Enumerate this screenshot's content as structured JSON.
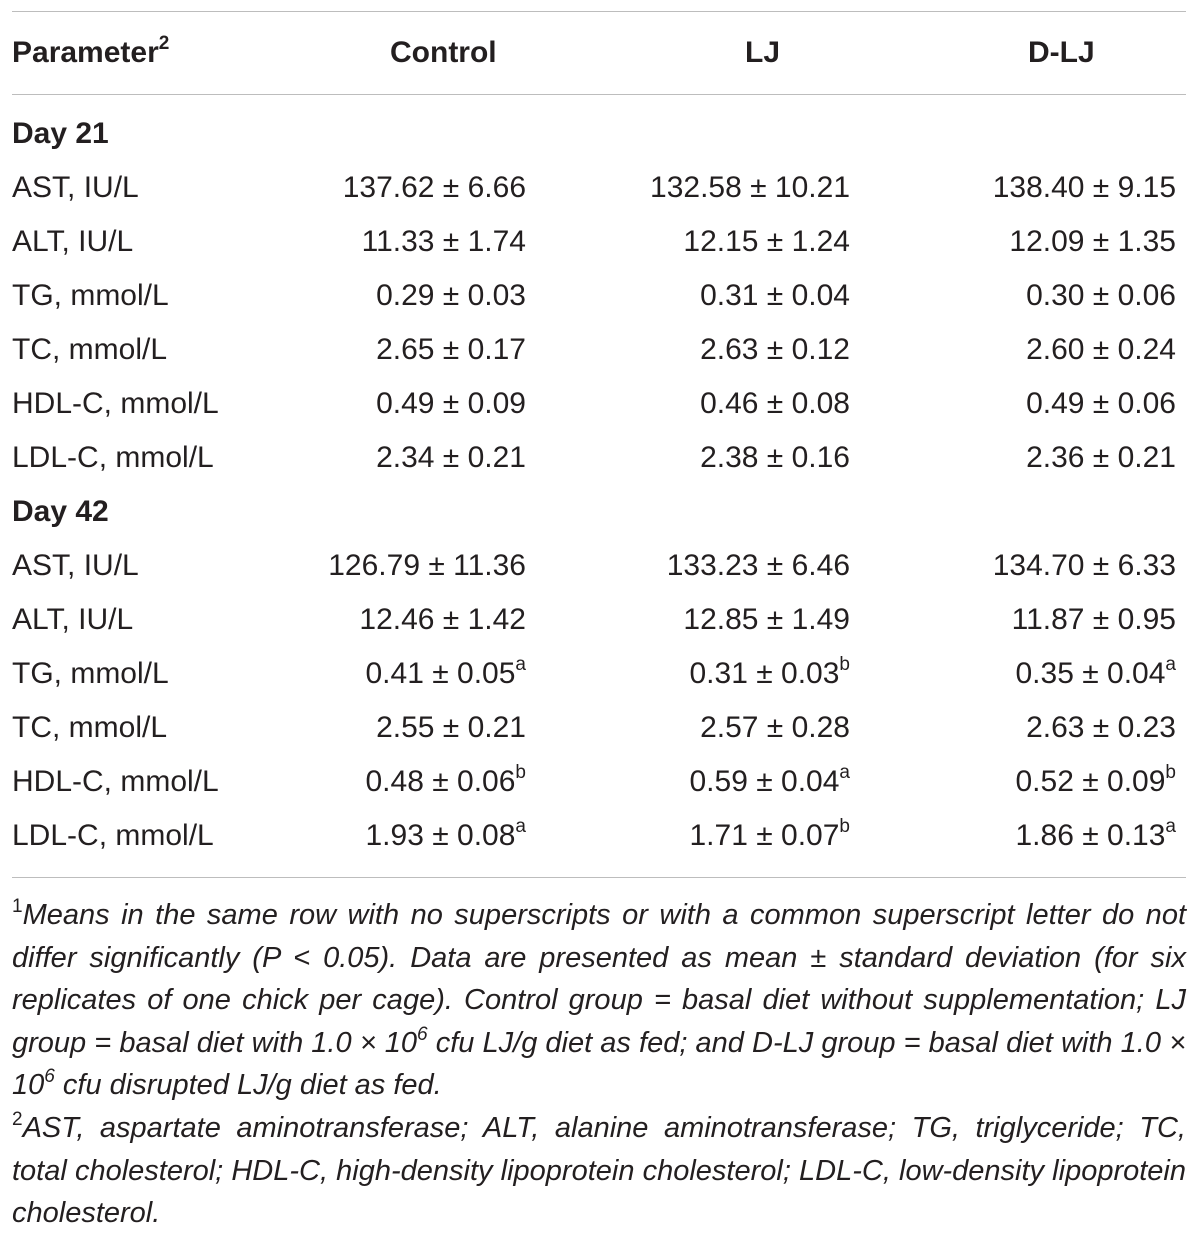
{
  "header": {
    "parameter": "Parameter",
    "parameter_sup": "2",
    "control": "Control",
    "lj": "LJ",
    "dlj": "D-LJ"
  },
  "sections": [
    {
      "title": "Day 21",
      "rows": [
        {
          "param": "AST, IU/L",
          "control": "137.62 ± 6.66",
          "control_sup": "",
          "lj": "132.58 ± 10.21",
          "lj_sup": "",
          "dlj": "138.40 ± 9.15",
          "dlj_sup": ""
        },
        {
          "param": "ALT, IU/L",
          "control": "11.33 ± 1.74",
          "control_sup": "",
          "lj": "12.15 ± 1.24",
          "lj_sup": "",
          "dlj": "12.09 ± 1.35",
          "dlj_sup": ""
        },
        {
          "param": "TG, mmol/L",
          "control": "0.29 ± 0.03",
          "control_sup": "",
          "lj": "0.31 ± 0.04",
          "lj_sup": "",
          "dlj": "0.30 ± 0.06",
          "dlj_sup": ""
        },
        {
          "param": "TC, mmol/L",
          "control": "2.65 ± 0.17",
          "control_sup": "",
          "lj": "2.63 ± 0.12",
          "lj_sup": "",
          "dlj": "2.60 ± 0.24",
          "dlj_sup": ""
        },
        {
          "param": "HDL-C, mmol/L",
          "control": "0.49 ± 0.09",
          "control_sup": "",
          "lj": "0.46 ± 0.08",
          "lj_sup": "",
          "dlj": "0.49 ± 0.06",
          "dlj_sup": ""
        },
        {
          "param": "LDL-C, mmol/L",
          "control": "2.34 ± 0.21",
          "control_sup": "",
          "lj": "2.38 ± 0.16",
          "lj_sup": "",
          "dlj": "2.36 ± 0.21",
          "dlj_sup": ""
        }
      ]
    },
    {
      "title": "Day 42",
      "rows": [
        {
          "param": "AST, IU/L",
          "control": "126.79 ± 11.36",
          "control_sup": "",
          "lj": "133.23 ± 6.46",
          "lj_sup": "",
          "dlj": "134.70 ± 6.33",
          "dlj_sup": ""
        },
        {
          "param": "ALT, IU/L",
          "control": "12.46 ± 1.42",
          "control_sup": "",
          "lj": "12.85 ± 1.49",
          "lj_sup": "",
          "dlj": "11.87 ± 0.95",
          "dlj_sup": ""
        },
        {
          "param": "TG, mmol/L",
          "control": "0.41 ± 0.05",
          "control_sup": "a",
          "lj": "0.31 ± 0.03",
          "lj_sup": "b",
          "dlj": "0.35 ± 0.04",
          "dlj_sup": "a"
        },
        {
          "param": "TC, mmol/L",
          "control": "2.55 ± 0.21",
          "control_sup": "",
          "lj": "2.57 ± 0.28",
          "lj_sup": "",
          "dlj": "2.63 ± 0.23",
          "dlj_sup": ""
        },
        {
          "param": "HDL-C, mmol/L",
          "control": "0.48 ± 0.06",
          "control_sup": "b",
          "lj": "0.59 ± 0.04",
          "lj_sup": "a",
          "dlj": "0.52 ± 0.09",
          "dlj_sup": "b"
        },
        {
          "param": "LDL-C, mmol/L",
          "control": "1.93 ± 0.08",
          "control_sup": "a",
          "lj": "1.71 ± 0.07",
          "lj_sup": "b",
          "dlj": "1.86 ± 0.13",
          "dlj_sup": "a"
        }
      ]
    }
  ],
  "footnotes": {
    "note1_marker": "1",
    "note1_part1": "Means in the same row with no superscripts or with a common superscript letter do not differ significantly (P < 0.05). Data are presented as mean ± standard deviation (for six replicates of one chick per cage). Control group = basal diet without supplementation; LJ group = basal diet with 1.0 × 10",
    "note1_exp1": "6",
    "note1_part2": " cfu LJ/g diet as fed; and D-LJ group = basal diet with 1.0 × 10",
    "note1_exp2": "6",
    "note1_part3": " cfu disrupted LJ/g diet as fed.",
    "note2_marker": "2",
    "note2_text": "AST, aspartate aminotransferase; ALT, alanine aminotransferase; TG, triglyceride; TC, total cholesterol; HDL-C, high-density lipoprotein cholesterol; LDL-C, low-density lipoprotein cholesterol."
  }
}
